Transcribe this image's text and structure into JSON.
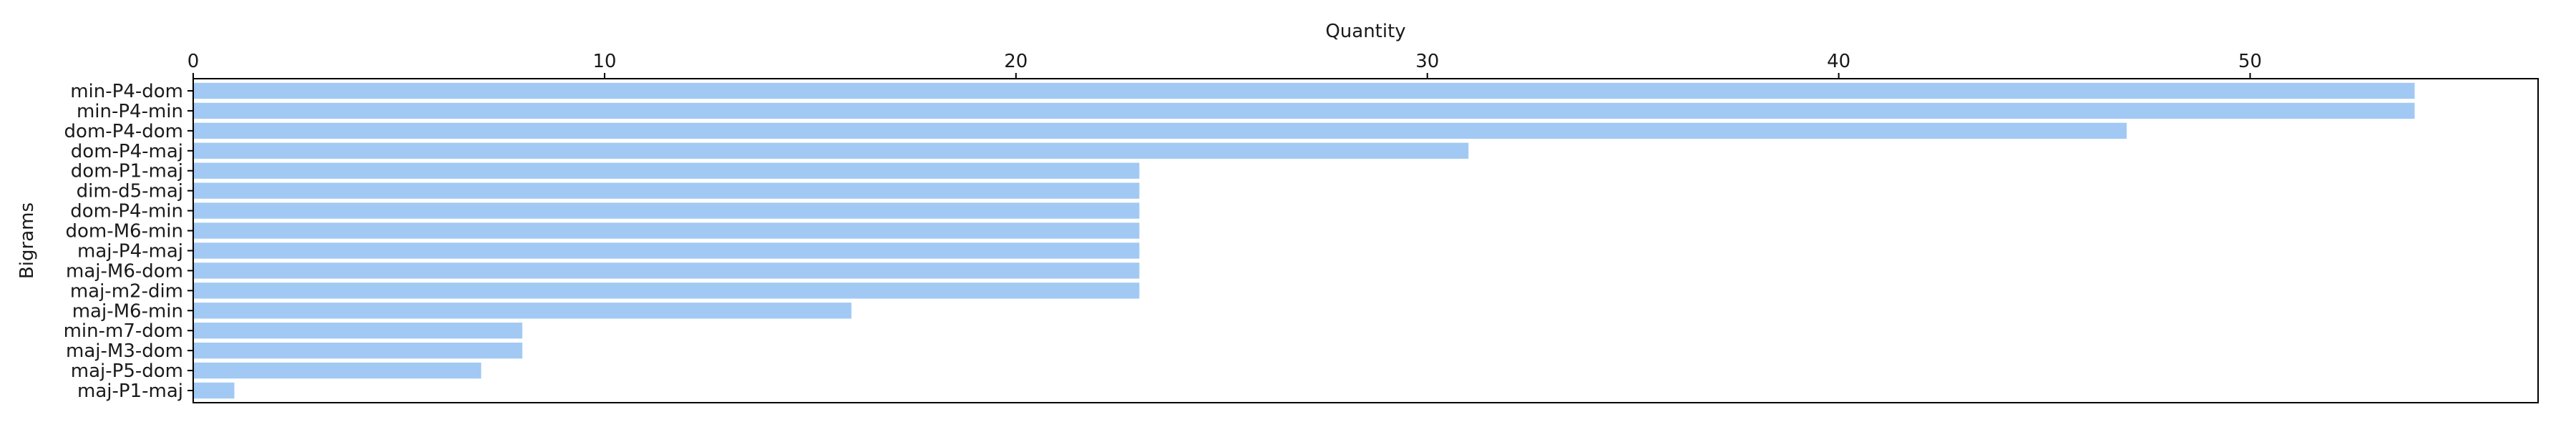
{
  "chart_data": {
    "type": "bar",
    "orientation": "horizontal",
    "title": "",
    "xlabel": "Quantity",
    "ylabel": "Bigrams",
    "x_axis_position": "top",
    "xlim": [
      0,
      57
    ],
    "xticks": [
      0,
      10,
      20,
      30,
      40,
      50
    ],
    "grid": false,
    "legend": "none",
    "bar_color": "#a1c9f4",
    "categories": [
      "min-P4-dom",
      "min-P4-min",
      "dom-P4-dom",
      "dom-P4-maj",
      "dom-P1-maj",
      "dim-d5-maj",
      "dom-P4-min",
      "dom-M6-min",
      "maj-P4-maj",
      "maj-M6-dom",
      "maj-m2-dim",
      "maj-M6-min",
      "min-m7-dom",
      "maj-M3-dom",
      "maj-P5-dom",
      "maj-P1-maj"
    ],
    "values": [
      54,
      54,
      47,
      31,
      23,
      23,
      23,
      23,
      23,
      23,
      23,
      16,
      8,
      8,
      7,
      1
    ]
  }
}
